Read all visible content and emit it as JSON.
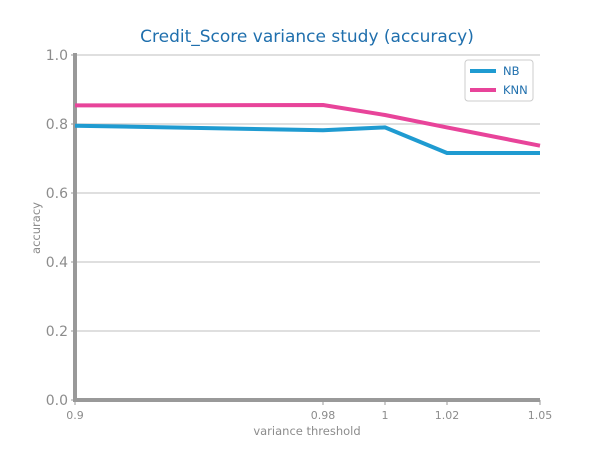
{
  "chart_data": {
    "type": "line",
    "title": "Credit_Score variance study (accuracy)",
    "xlabel": "variance threshold",
    "ylabel": "accuracy",
    "x": [
      0.9,
      0.98,
      1.0,
      1.02,
      1.05
    ],
    "x_tick_labels": [
      "0.9",
      "0.98",
      "1",
      "1.02",
      "1.05"
    ],
    "xlim": [
      0.9,
      1.05
    ],
    "ylim": [
      0.0,
      1.0
    ],
    "y_ticks": [
      0.0,
      0.2,
      0.4,
      0.6,
      0.8,
      1.0
    ],
    "y_tick_labels": [
      "0.0",
      "0.2",
      "0.4",
      "0.6",
      "0.8",
      "1.0"
    ],
    "grid": "horizontal",
    "legend_position": "top-right",
    "series": [
      {
        "name": "NB",
        "color": "#1f9bd1",
        "values": [
          0.795,
          0.782,
          0.79,
          0.716,
          0.716
        ]
      },
      {
        "name": "KNN",
        "color": "#e8449a",
        "values": [
          0.854,
          0.855,
          0.826,
          0.79,
          0.737
        ]
      }
    ]
  }
}
